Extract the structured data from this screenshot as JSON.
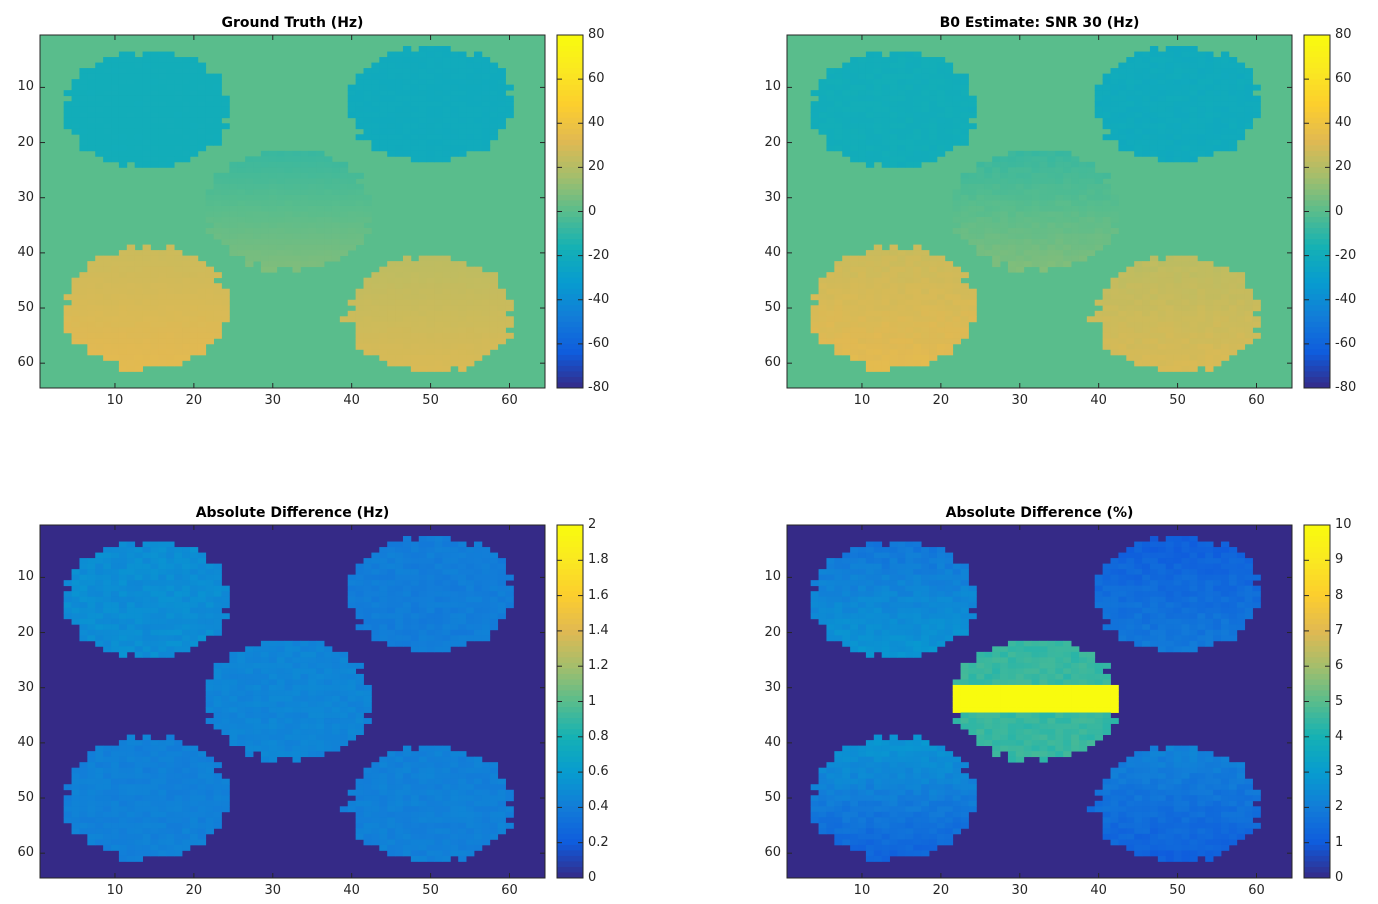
{
  "chart_data": [
    {
      "type": "heatmap",
      "title": "Ground Truth (Hz)",
      "xlim": [
        0.5,
        64.5
      ],
      "ylim": [
        0.5,
        64.5
      ],
      "xticks": [
        10,
        20,
        30,
        40,
        50,
        60
      ],
      "yticks": [
        10,
        20,
        30,
        40,
        50,
        60
      ],
      "clim": [
        -80,
        80
      ],
      "colorbar_ticks": [
        80,
        60,
        40,
        20,
        0,
        -20,
        -40,
        -60,
        -80
      ],
      "colormap": "parula",
      "background_value": 0,
      "regions": [
        {
          "cx": 14,
          "cy": 14,
          "rx": 10.5,
          "ry": 10.5,
          "value_top": -19,
          "value_bottom": -19,
          "noise": 0.3
        },
        {
          "cx": 50,
          "cy": 13,
          "rx": 10.5,
          "ry": 10.5,
          "value_top": -21,
          "value_bottom": -21,
          "noise": 0.3
        },
        {
          "cx": 32,
          "cy": 32,
          "rx": 10.5,
          "ry": 11,
          "value_top": -8,
          "value_bottom": 8,
          "noise": 0.3
        },
        {
          "cx": 14,
          "cy": 50,
          "rx": 10.5,
          "ry": 11,
          "value_top": 26,
          "value_bottom": 33,
          "noise": 0.3
        },
        {
          "cx": 50,
          "cy": 51,
          "rx": 10.5,
          "ry": 10.5,
          "value_top": 22,
          "value_bottom": 30,
          "noise": 0.3
        }
      ]
    },
    {
      "type": "heatmap",
      "title": "B0 Estimate: SNR 30 (Hz)",
      "xlim": [
        0.5,
        64.5
      ],
      "ylim": [
        0.5,
        64.5
      ],
      "xticks": [
        10,
        20,
        30,
        40,
        50,
        60
      ],
      "yticks": [
        10,
        20,
        30,
        40,
        50,
        60
      ],
      "clim": [
        -80,
        80
      ],
      "colorbar_ticks": [
        80,
        60,
        40,
        20,
        0,
        -20,
        -40,
        -60,
        -80
      ],
      "colormap": "parula",
      "background_value": 0,
      "regions": [
        {
          "cx": 14,
          "cy": 14,
          "rx": 10.5,
          "ry": 10.5,
          "value_top": -19,
          "value_bottom": -19,
          "noise": 1
        },
        {
          "cx": 50,
          "cy": 13,
          "rx": 10.5,
          "ry": 10.5,
          "value_top": -21,
          "value_bottom": -21,
          "noise": 1
        },
        {
          "cx": 32,
          "cy": 32,
          "rx": 10.5,
          "ry": 11,
          "value_top": -8,
          "value_bottom": 8,
          "noise": 1
        },
        {
          "cx": 14,
          "cy": 50,
          "rx": 10.5,
          "ry": 11,
          "value_top": 26,
          "value_bottom": 33,
          "noise": 1
        },
        {
          "cx": 50,
          "cy": 51,
          "rx": 10.5,
          "ry": 10.5,
          "value_top": 22,
          "value_bottom": 30,
          "noise": 1
        }
      ]
    },
    {
      "type": "heatmap",
      "title": "Absolute Difference (Hz)",
      "xlim": [
        0.5,
        64.5
      ],
      "ylim": [
        0.5,
        64.5
      ],
      "xticks": [
        10,
        20,
        30,
        40,
        50,
        60
      ],
      "yticks": [
        10,
        20,
        30,
        40,
        50,
        60
      ],
      "clim": [
        0,
        2
      ],
      "colorbar_ticks": [
        2,
        1.8,
        1.6,
        1.4,
        1.2,
        1,
        0.8,
        0.6,
        0.4,
        0.2,
        0
      ],
      "colormap": "parula",
      "background_value": 0,
      "regions": [
        {
          "cx": 14,
          "cy": 14,
          "rx": 10.5,
          "ry": 10.5,
          "value_top": 0.5,
          "value_bottom": 0.5,
          "noise": 0.04
        },
        {
          "cx": 50,
          "cy": 13,
          "rx": 10.5,
          "ry": 10.5,
          "value_top": 0.4,
          "value_bottom": 0.4,
          "noise": 0.03
        },
        {
          "cx": 32,
          "cy": 32,
          "rx": 10.5,
          "ry": 11,
          "value_top": 0.45,
          "value_bottom": 0.45,
          "noise": 0.03
        },
        {
          "cx": 14,
          "cy": 50,
          "rx": 10.5,
          "ry": 11,
          "value_top": 0.42,
          "value_bottom": 0.42,
          "noise": 0.03
        },
        {
          "cx": 50,
          "cy": 51,
          "rx": 10.5,
          "ry": 10.5,
          "value_top": 0.42,
          "value_bottom": 0.42,
          "noise": 0.03
        }
      ]
    },
    {
      "type": "heatmap",
      "title": "Absolute Difference (%)",
      "xlim": [
        0.5,
        64.5
      ],
      "ylim": [
        0.5,
        64.5
      ],
      "xticks": [
        10,
        20,
        30,
        40,
        50,
        60
      ],
      "yticks": [
        10,
        20,
        30,
        40,
        50,
        60
      ],
      "clim": [
        0,
        10
      ],
      "colorbar_ticks": [
        10,
        9,
        8,
        7,
        6,
        5,
        4,
        3,
        2,
        1,
        0
      ],
      "colormap": "parula",
      "background_value": 0,
      "regions": [
        {
          "cx": 14,
          "cy": 14,
          "rx": 10.5,
          "ry": 10.5,
          "value_top": 1.8,
          "value_bottom": 2.8,
          "noise": 0.2
        },
        {
          "cx": 50,
          "cy": 13,
          "rx": 10.5,
          "ry": 10.5,
          "value_top": 1.1,
          "value_bottom": 1.9,
          "noise": 0.2
        },
        {
          "cx": 32,
          "cy": 32,
          "rx": 10.5,
          "ry": 11,
          "value_top": 4.5,
          "value_bottom": 4.5,
          "noise": 0.2,
          "center_band": {
            "y0": 30,
            "y1": 34,
            "value": 10
          }
        },
        {
          "cx": 14,
          "cy": 50,
          "rx": 10.5,
          "ry": 11,
          "value_top": 2.8,
          "value_bottom": 1.2,
          "noise": 0.2
        },
        {
          "cx": 50,
          "cy": 51,
          "rx": 10.5,
          "ry": 10.5,
          "value_top": 2.2,
          "value_bottom": 1.1,
          "noise": 0.2
        }
      ]
    }
  ]
}
